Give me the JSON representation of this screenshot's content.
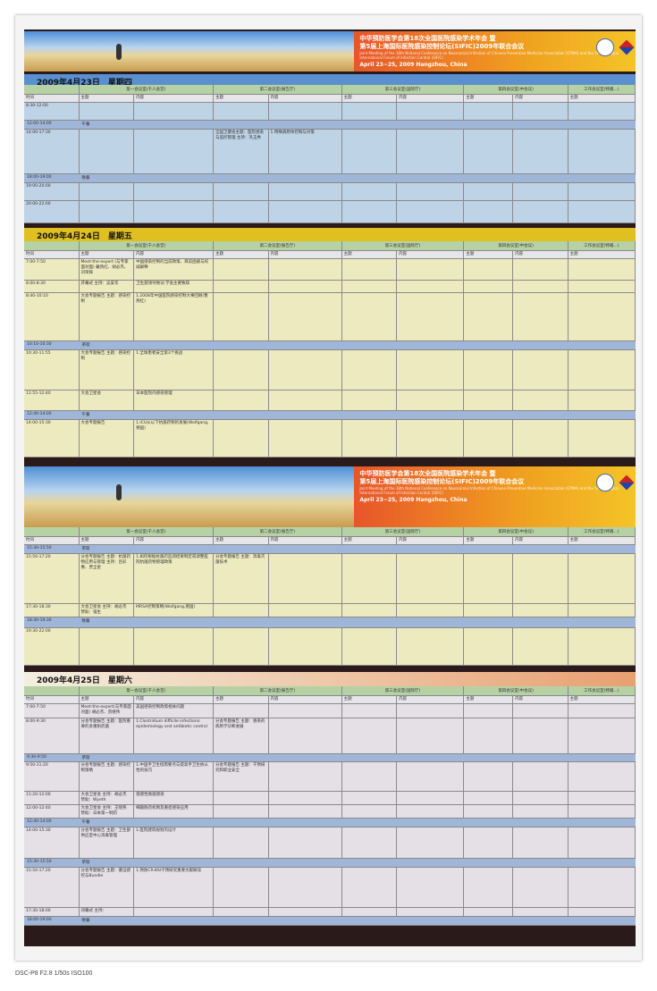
{
  "banner": {
    "title_cn_1": "中华预防医学会第18次全国医院感染学术年会 暨",
    "title_cn_2": "第5届上海国际医院感染控制论坛(SIFIC)2009年联合会议",
    "title_en": "Joint Meeting of the 18th National Conference on Nosocomial Infection of Chinese Preventive Medicine Association (CPMA) and the 5th Shanghai International Forum of Infection Control (SIFIC)",
    "dates": "April 23~25, 2009  Hangzhou, China"
  },
  "columns": {
    "rooms": [
      "第一会议室(千人会堂)",
      "第二会议室(报告厅)",
      "第三会议室(国际厅)",
      "第四会议室(中会议)",
      "工作会议室(特邀...)"
    ],
    "time": "时间",
    "topic": "主题",
    "content": "内容"
  },
  "colors": {
    "day1": "#5a8fd0",
    "day2": "#e0c020",
    "day3": "#e8a070",
    "table1": "#bfd3e6",
    "table2": "#eeeac0",
    "table3": "#eeeac0",
    "table4": "#e4e0e6"
  },
  "tables": [
    {
      "day": "2009年4月23日　星期四",
      "rows": [
        {
          "time": "8:30-12:00"
        },
        {
          "time": "12:00-14:00",
          "break": "午餐"
        },
        {
          "time": "14:00-17:30",
          "cells": [
            "",
            "",
            "全国卫健会主题：医院感染与监控管理 主持：巩玉秀",
            "1.特殊病原体控制与对策"
          ]
        },
        {
          "time": "18:00-19:00",
          "break": "晚餐"
        },
        {
          "time": "19:00-20:00"
        },
        {
          "time": "20:00-22:00"
        }
      ]
    },
    {
      "day": "2009年4月24日　星期五",
      "rows": [
        {
          "time": "7:00-7:50",
          "cells": [
            "Meet-the-expert (与专家面对面) 戴燕红、胡必杰、刘荣辉",
            "中国感染控制的当前政策、目前困惑与权威解释"
          ]
        },
        {
          "time": "8:00-8:30",
          "cells": [
            "开幕式 主持：吴安华",
            "卫生部领导致词 学会主要致辞"
          ]
        },
        {
          "time": "8:40-10:10",
          "cells": [
            "大会专题报告 主题：感染控制",
            "1.2008年中国医院感染控制大事回顾(曹燕红)"
          ]
        },
        {
          "time": "10:10-10:30",
          "break": "茶歇"
        },
        {
          "time": "10:30-11:55",
          "cells": [
            "大会专题报告 主题：感染控制",
            "1.全球患者安全第3个挑战"
          ]
        },
        {
          "time": "11:55-12:40",
          "cells": [
            "大会卫星会",
            "日本医院内感染管理"
          ]
        },
        {
          "time": "12:40-14:00",
          "break": "午餐"
        },
        {
          "time": "14:00-15:30",
          "cells": [
            "大会专题报告",
            "1.ICU从以下抗菌药物的发展(Wolfgang,德国)"
          ]
        }
      ]
    },
    {
      "day": "",
      "rows": [
        {
          "time": "15:30-15:50",
          "break": "茶歇"
        },
        {
          "time": "15:50-17:20",
          "cells": [
            "分会专题报告 主题：抗菌药物应用与管理 主持：吕彩惠、贾全星",
            "1.如何根据抗菌药监测结果制定或调整医院抗菌药物管理政策",
            "分会专题报告 主题：消毒灭菌技术"
          ]
        },
        {
          "time": "17:30-18:30",
          "cells": [
            "大会卫星会 主持：胡必杰 赞助：强生",
            "MRSA控制策略(Wolfgang,德国)"
          ]
        },
        {
          "time": "18:30-19:30",
          "break": "晚餐"
        },
        {
          "time": "19:30-22:00"
        }
      ]
    },
    {
      "day": "2009年4月25日　星期六",
      "rows": [
        {
          "time": "7:00-7:50",
          "cells": [
            "Meet-the-expert(与专家面对面) 胡必杰、宗继伟",
            "美国感染控制政策相关问题"
          ]
        },
        {
          "time": "8:00-9:30",
          "cells": [
            "分会专题报告 主题：医院重要的多重耐药菌",
            "1.Clostridium difficile infections: epidemiology and antibiotic control",
            "分会专题报告 主题：感染的病原学诊断进展"
          ]
        },
        {
          "time": "9:30-9:50",
          "break": "茶歇"
        },
        {
          "time": "9:50-11:20",
          "cells": [
            "分会专题报告 主题：感染控制策略",
            "1.中国手卫生指南要点与提高手卫生依从性的技巧",
            "分会专题报告 主题：干预研究和职业安全"
          ]
        },
        {
          "time": "11:20-12:00",
          "cells": [
            "大会卫星会 主持：胡必杰 赞助：Wyeth",
            "侵袭性真菌感染"
          ]
        },
        {
          "time": "12:00-12:40",
          "cells": [
            "大会卫星会 主持：王晓燕 赞助：日本第一制药",
            "细菌耐药机制及重症感染应用"
          ]
        },
        {
          "time": "12:40-14:00",
          "break": "午餐"
        },
        {
          "time": "14:00-15:30",
          "cells": [
            "分会专题报告 主题：卫生部供应室中心消毒管理",
            "1.医院建筑规划的设计"
          ]
        },
        {
          "time": "15:30-15:50",
          "break": "茶歇"
        },
        {
          "time": "15:50-17:20",
          "cells": [
            "分会专题报告 主题：循证感控与Bundle",
            "1.预防CR-BSI干预研究重要文献解读"
          ]
        },
        {
          "time": "17:30-18:00",
          "cells": [
            "闭幕式 主持："
          ]
        },
        {
          "time": "18:00-19:00",
          "break": "晚餐"
        }
      ]
    }
  ],
  "caption": "DSC-P8 F2.8 1/50s ISO100"
}
